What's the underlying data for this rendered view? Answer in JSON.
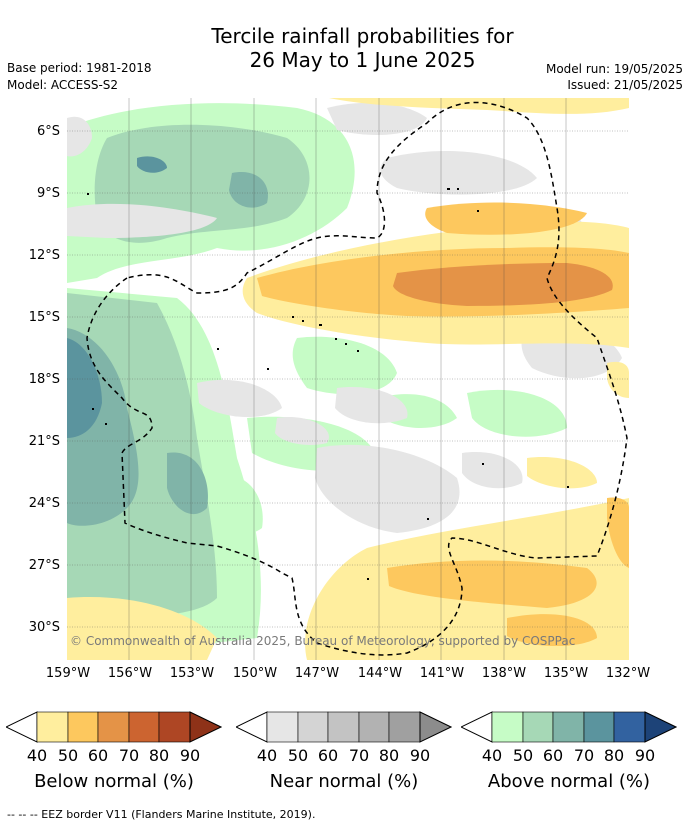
{
  "title_line1": "Tercile rainfall probabilities for",
  "title_line2": "26 May to 1 June 2025",
  "meta": {
    "base_period": "Base period: 1981-2018",
    "model": "Model: ACCESS-S2",
    "model_run": "Model run: 19/05/2025",
    "issued": "Issued: 21/05/2025"
  },
  "map": {
    "lat_labels": [
      "6°S",
      "9°S",
      "12°S",
      "15°S",
      "18°S",
      "21°S",
      "24°S",
      "27°S",
      "30°S"
    ],
    "lon_labels": [
      "159°W",
      "156°W",
      "153°W",
      "150°W",
      "147°W",
      "144°W",
      "141°W",
      "138°W",
      "135°W",
      "132°W"
    ],
    "lon_range": [
      -159,
      -132
    ],
    "lat_range": [
      -4.5,
      -31.5
    ],
    "copyright": "© Commonwealth of Australia 2025, Bureau of Meteorology, supported by COSPPac",
    "colors": {
      "below": [
        "#ffee9e",
        "#fdc85e",
        "#e49347",
        "#cc6430",
        "#ae4624",
        "#8e3218"
      ],
      "near": [
        "#e6e6e6",
        "#d4d4d4",
        "#c3c3c3",
        "#b2b2b2",
        "#a0a0a0",
        "#8c8c8c"
      ],
      "above": [
        "#c6fcc6",
        "#a6d8b6",
        "#80b4a8",
        "#5b949e",
        "#3262a0",
        "#1d4378"
      ]
    }
  },
  "legend": {
    "ticks": [
      "40",
      "50",
      "60",
      "70",
      "80",
      "90"
    ],
    "below_title": "Below normal (%)",
    "near_title": "Near normal (%)",
    "above_title": "Above normal (%)"
  },
  "footer": "--  --  -- EEZ border V11 (Flanders Marine Institute, 2019)."
}
